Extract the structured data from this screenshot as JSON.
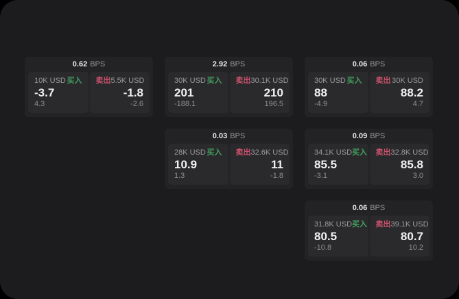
{
  "labels": {
    "buy": "买入",
    "sell": "卖出",
    "bps": "BPS"
  },
  "colors": {
    "outer_background": "#000000",
    "page_background": "#1c1c1e",
    "card_background": "#232325",
    "panel_background": "#2a2a2c",
    "buy_green": "#43a05e",
    "sell_red": "#c9516d",
    "text_primary": "#f1f1f3",
    "text_secondary": "#9a9a9e"
  },
  "cards": [
    {
      "bps": "0.62",
      "buy": {
        "notional": "10K USD",
        "price": "-3.7",
        "delta": "4.3"
      },
      "sell": {
        "notional": "5.5K USD",
        "price": "-1.8",
        "delta": "-2.6"
      }
    },
    {
      "bps": "2.92",
      "buy": {
        "notional": "30K USD",
        "price": "201",
        "delta": "-188.1"
      },
      "sell": {
        "notional": "30.1K USD",
        "price": "210",
        "delta": "196.5"
      }
    },
    {
      "bps": "0.06",
      "buy": {
        "notional": "30K USD",
        "price": "88",
        "delta": "-4.9"
      },
      "sell": {
        "notional": "30K USD",
        "price": "88.2",
        "delta": "4.7"
      }
    },
    {
      "bps": "0.03",
      "buy": {
        "notional": "28K USD",
        "price": "10.9",
        "delta": "1.3"
      },
      "sell": {
        "notional": "32.6K USD",
        "price": "11",
        "delta": "-1.8"
      }
    },
    {
      "bps": "0.09",
      "buy": {
        "notional": "34.1K USD",
        "price": "85.5",
        "delta": "-3.1"
      },
      "sell": {
        "notional": "32.8K USD",
        "price": "85.8",
        "delta": "3.0"
      }
    },
    {
      "bps": "0.06",
      "buy": {
        "notional": "31.8K USD",
        "price": "80.5",
        "delta": "-10.8"
      },
      "sell": {
        "notional": "39.1K USD",
        "price": "80.7",
        "delta": "10.2"
      }
    }
  ]
}
